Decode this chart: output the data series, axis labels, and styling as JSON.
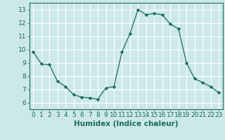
{
  "x": [
    0,
    1,
    2,
    3,
    4,
    5,
    6,
    7,
    8,
    9,
    10,
    11,
    12,
    13,
    14,
    15,
    16,
    17,
    18,
    19,
    20,
    21,
    22,
    23
  ],
  "y": [
    9.8,
    8.9,
    8.85,
    7.6,
    7.2,
    6.6,
    6.4,
    6.35,
    6.25,
    7.1,
    7.2,
    9.8,
    11.2,
    13.0,
    12.6,
    12.7,
    12.6,
    11.9,
    11.55,
    9.0,
    7.8,
    7.5,
    7.2,
    6.75
  ],
  "line_color": "#1a6b5a",
  "marker": "D",
  "marker_size": 2.2,
  "bg_color": "#cce8e8",
  "grid_color": "#ffffff",
  "xlabel": "Humidex (Indice chaleur)",
  "xlim": [
    -0.5,
    23.5
  ],
  "ylim": [
    5.5,
    13.5
  ],
  "yticks": [
    6,
    7,
    8,
    9,
    10,
    11,
    12,
    13
  ],
  "xticks": [
    0,
    1,
    2,
    3,
    4,
    5,
    6,
    7,
    8,
    9,
    10,
    11,
    12,
    13,
    14,
    15,
    16,
    17,
    18,
    19,
    20,
    21,
    22,
    23
  ],
  "tick_color": "#1a6b5a",
  "label_color": "#1a6b5a",
  "tick_fontsize": 6.5,
  "xlabel_fontsize": 7.5
}
